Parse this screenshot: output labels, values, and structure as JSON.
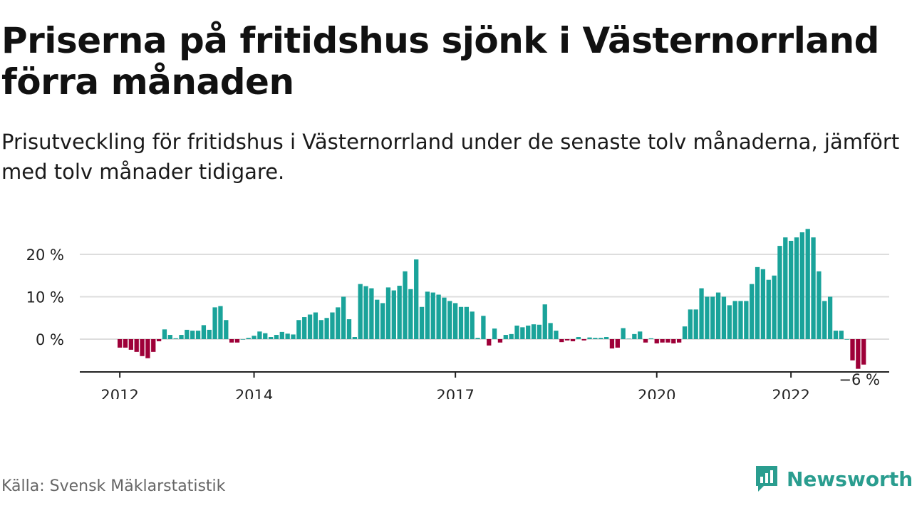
{
  "title": "Priserna på fritidshus sjönk i Västernorrland förra månaden",
  "subtitle": "Prisutveckling för fritidshus i Västernorrland under de senaste tolv månaderna, jämfört med tolv månader tidigare.",
  "source": "Källa: Svensk Mäklarstatistik",
  "brand": "Newsworthy",
  "colors": {
    "positive": "#1aa39a",
    "negative": "#9e0038",
    "grid": "#dddddd",
    "axis": "#222222",
    "brand": "#2a9d8f"
  },
  "chart_data": {
    "type": "bar",
    "ylabel": "",
    "xlabel": "",
    "ylim": [
      -8,
      27
    ],
    "y_ticks": [
      0,
      10,
      20
    ],
    "y_tick_labels": [
      "0 %",
      "10 %",
      "20 %"
    ],
    "x_ticks": [
      "2012",
      "2014",
      "2017",
      "2020",
      "2022"
    ],
    "annotation": "−6 %",
    "grid": true,
    "start": "2012-01",
    "values": [
      -2,
      -2,
      -2.5,
      -3,
      -4,
      -4.5,
      -3,
      -0.5,
      2.3,
      1,
      0.2,
      1,
      2.2,
      2,
      2,
      3.3,
      2.2,
      7.5,
      7.8,
      4.5,
      -0.8,
      -0.8,
      0,
      0.3,
      0.8,
      1.8,
      1.4,
      0.5,
      1,
      1.7,
      1.3,
      1.1,
      4.5,
      5.2,
      5.8,
      6.3,
      4.5,
      5,
      6.3,
      7.5,
      10,
      4.7,
      0.5,
      13,
      12.5,
      12,
      9.3,
      8.5,
      12.2,
      11.5,
      12.6,
      16,
      11.8,
      18.8,
      7.6,
      11.2,
      11,
      10.5,
      9.8,
      9,
      8.5,
      7.6,
      7.6,
      6.5,
      0.3,
      5.5,
      -1.5,
      2.5,
      -0.8,
      1,
      1.2,
      3.2,
      2.8,
      3.2,
      3.5,
      3.4,
      8.2,
      3.8,
      2,
      -0.7,
      -0.3,
      -0.5,
      0.5,
      -0.3,
      0.4,
      0.3,
      0.3,
      0.5,
      -2.2,
      -2,
      2.6,
      0.1,
      1.2,
      1.8,
      -0.8,
      0.2,
      -1,
      -0.8,
      -0.8,
      -1,
      -0.8,
      3,
      7,
      7,
      12,
      10,
      10,
      11,
      10,
      8,
      9,
      9,
      9,
      13,
      17,
      16.5,
      14,
      15,
      22,
      24,
      23.2,
      24,
      25.2,
      26,
      24,
      16,
      9,
      10,
      2,
      2,
      0,
      -5,
      -7,
      -6
    ]
  }
}
